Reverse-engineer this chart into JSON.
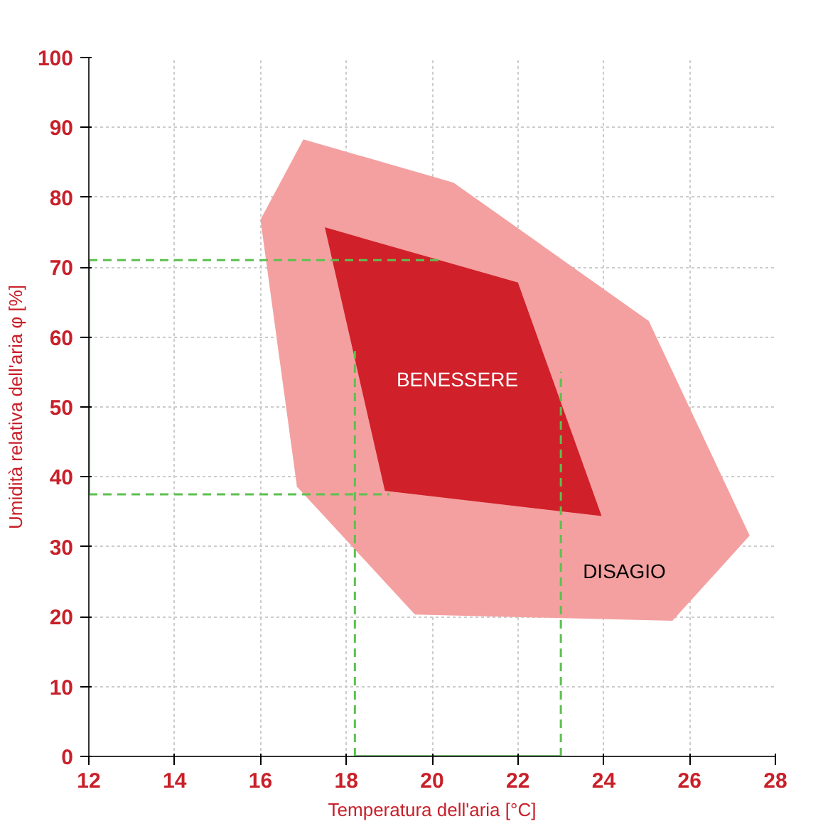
{
  "chart_data": {
    "type": "area",
    "xlabel": "Temperatura dell'aria [°C]",
    "ylabel": "Umidità relativa dell'aria φ [%]",
    "xlim": [
      12,
      28
    ],
    "ylim": [
      0,
      100
    ],
    "xticks": [
      12,
      14,
      16,
      18,
      20,
      22,
      24,
      26,
      28
    ],
    "yticks": [
      0,
      10,
      20,
      30,
      40,
      50,
      60,
      70,
      80,
      90,
      100
    ],
    "grid": true,
    "series": [
      {
        "color": "#f4a0a0",
        "x": [
          17.0,
          20.5,
          25.05,
          27.4,
          25.6,
          19.6,
          16.85,
          16.0
        ],
        "values": [
          88.3,
          82.1,
          62.3,
          31.6,
          19.4,
          20.3,
          38.6,
          76.8
        ]
      },
      {
        "color": "#d0202a",
        "x": [
          17.5,
          22.0,
          23.95,
          18.9
        ],
        "values": [
          75.7,
          67.8,
          34.4,
          38.0
        ]
      },
      {
        "type": "line",
        "color": "#5cc050",
        "line_style": "dashed",
        "x": [
          12,
          20.2
        ],
        "values": [
          71,
          71
        ]
      },
      {
        "type": "line",
        "color": "#5cc050",
        "line_style": "dashed",
        "x": [
          12,
          19.0
        ],
        "values": [
          37.5,
          37.5
        ]
      },
      {
        "type": "line",
        "color": "#5cc050",
        "line_style": "dashed",
        "x": [
          18.2,
          18.2
        ],
        "values": [
          0,
          58
        ]
      },
      {
        "type": "line",
        "color": "#5cc050",
        "line_style": "dashed",
        "x": [
          23.0,
          23.0
        ],
        "values": [
          0,
          55
        ]
      },
      {
        "type": "line",
        "color": "#7ac070",
        "line_style": "solid",
        "x": [
          18.2,
          23.0
        ],
        "values": [
          0,
          0
        ]
      },
      {
        "type": "line",
        "color": "#7ac070",
        "line_style": "solid",
        "x": [
          12,
          12
        ],
        "values": [
          37.5,
          71
        ]
      }
    ],
    "annotations": [
      "BENESSERE",
      "DISAGIO"
    ]
  }
}
